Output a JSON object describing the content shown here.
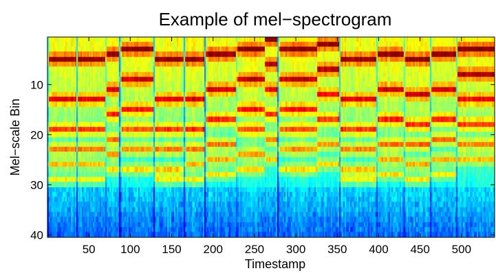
{
  "chart_data": {
    "type": "heatmap",
    "title": "Example of mel−spectrogram",
    "xlabel": "Timestamp",
    "ylabel": "Mel−scale Bin",
    "xlim": [
      0,
      540
    ],
    "ylim": [
      40.5,
      0.5
    ],
    "x_ticks": [
      50,
      100,
      150,
      200,
      250,
      300,
      350,
      400,
      450,
      500
    ],
    "y_ticks": [
      10,
      20,
      30,
      40
    ],
    "colormap": "jet",
    "n_bins": 40,
    "segments": [
      {
        "start": 0,
        "end": 35,
        "peaks": [
          5,
          13,
          19,
          23,
          26,
          29
        ]
      },
      {
        "start": 35,
        "end": 70,
        "peaks": [
          5,
          13,
          19,
          23,
          26,
          29
        ]
      },
      {
        "start": 70,
        "end": 87,
        "peaks": [
          4,
          11,
          16,
          21,
          24,
          27
        ]
      },
      {
        "start": 87,
        "end": 128,
        "peaks": [
          3,
          9,
          15,
          19,
          23,
          27
        ]
      },
      {
        "start": 128,
        "end": 165,
        "peaks": [
          5,
          13,
          19,
          23,
          27,
          29
        ]
      },
      {
        "start": 165,
        "end": 190,
        "peaks": [
          5,
          13,
          19,
          23,
          26,
          29
        ]
      },
      {
        "start": 190,
        "end": 227,
        "peaks": [
          4,
          11,
          17,
          22,
          25,
          28
        ]
      },
      {
        "start": 227,
        "end": 262,
        "peaks": [
          3,
          9,
          15,
          19,
          24,
          27
        ]
      },
      {
        "start": 262,
        "end": 278,
        "peaks": [
          1,
          6,
          11,
          16,
          21,
          25
        ]
      },
      {
        "start": 278,
        "end": 325,
        "peaks": [
          3,
          9,
          15,
          19,
          23,
          27
        ]
      },
      {
        "start": 325,
        "end": 352,
        "peaks": [
          2,
          7,
          12,
          17,
          22,
          26
        ]
      },
      {
        "start": 352,
        "end": 397,
        "peaks": [
          5,
          13,
          19,
          23,
          27,
          29
        ]
      },
      {
        "start": 397,
        "end": 430,
        "peaks": [
          4,
          11,
          17,
          22,
          25,
          28
        ]
      },
      {
        "start": 430,
        "end": 462,
        "peaks": [
          5,
          12,
          18,
          22,
          26,
          29
        ]
      },
      {
        "start": 462,
        "end": 493,
        "peaks": [
          4,
          11,
          17,
          21,
          25,
          28
        ]
      },
      {
        "start": 493,
        "end": 540,
        "peaks": [
          3,
          8,
          13,
          18,
          22,
          25
        ]
      }
    ]
  }
}
